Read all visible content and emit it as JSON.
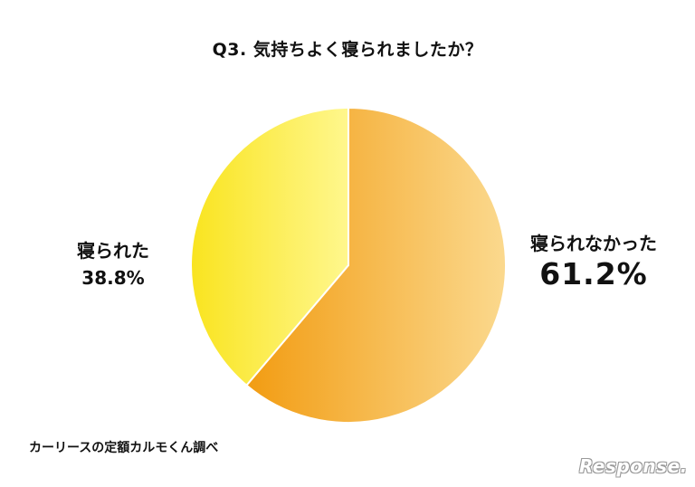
{
  "chart_data": {
    "type": "pie",
    "title": "Q3. 気持ちよく寝られましたか？",
    "slices": [
      {
        "label": "寝られなかった",
        "value": 61.2,
        "value_label": "61.2%",
        "color_start": "#f29c12",
        "color_end": "#fbd98e"
      },
      {
        "label": "寝られた",
        "value": 38.8,
        "value_label": "38.8%",
        "color_start": "#f9e41f",
        "color_end": "#fff78d"
      }
    ],
    "start_angle_deg": 0,
    "direction": "clockwise",
    "legend": "none"
  },
  "footer": {
    "source": "カーリースの定額カルモくん調べ",
    "logo": "Response."
  }
}
